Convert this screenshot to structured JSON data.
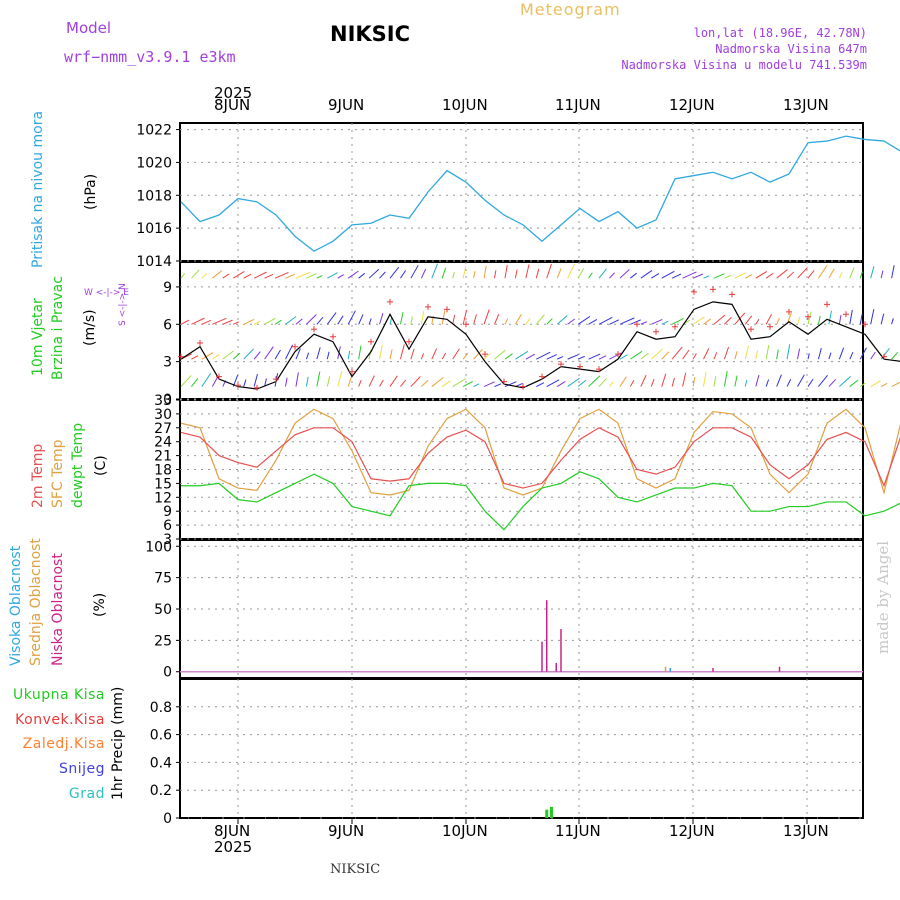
{
  "header": {
    "model_label": "Model",
    "model_name": "wrf−nmm_v3.9.1 e3km",
    "station": "NIKSIC",
    "app_title": "Meteogram",
    "coords": "lon,lat (18.96E, 42.78N)",
    "elevation": "Nadmorska Visina 647m",
    "model_elevation": "Nadmorska Visina u modelu 741.539m"
  },
  "footer": {
    "station": "NIKSIC"
  },
  "watermark": "made by Angel",
  "axis": {
    "year": "2025",
    "days": [
      "8JUN",
      "9JUN",
      "10JUN",
      "11JUN",
      "12JUN",
      "13JUN"
    ]
  },
  "colors": {
    "pressure": "#2fa8e0",
    "wind_speed": "#000000",
    "gust": "#e83a3a",
    "t2m": "#e85050",
    "sfc": "#e0a040",
    "dewpt": "#22cc22",
    "high_cloud": "#2fa8e0",
    "mid_cloud": "#e0a040",
    "low_cloud": "#cc2288",
    "total_precip": "#22cc22",
    "conv_precip": "#e83a3a",
    "frozen_precip": "#ff8030",
    "snow": "#4040e0",
    "graupel": "#30c0c0",
    "header_purple": "#a040e0",
    "header_gold": "#e8c060"
  },
  "chart_data": [
    {
      "type": "line",
      "id": "pressure",
      "title": "Pritisak na nivou mora",
      "ylabel": "(hPa)",
      "ylim": [
        1014,
        1022.4
      ],
      "yticks": [
        "1014",
        "1016",
        "1018",
        "1020",
        "1022"
      ],
      "x": [
        0,
        4,
        8,
        12,
        16,
        20,
        24,
        28,
        32,
        36,
        40,
        44,
        48,
        52,
        56,
        60,
        64,
        68,
        72,
        76,
        80,
        84,
        88,
        92,
        96,
        100,
        104,
        108,
        112,
        116,
        120,
        124,
        128,
        132,
        136,
        140,
        144,
        148,
        152
      ],
      "series": [
        {
          "name": "Pressure",
          "values": [
            1017.6,
            1016.4,
            1016.8,
            1017.8,
            1017.6,
            1016.8,
            1015.5,
            1014.6,
            1015.2,
            1016.2,
            1016.3,
            1016.8,
            1016.6,
            1018.2,
            1019.5,
            1018.8,
            1017.7,
            1016.8,
            1016.2,
            1015.2,
            1016.2,
            1017.2,
            1016.4,
            1017.0,
            1016.0,
            1016.5,
            1019.0,
            1019.2,
            1019.4,
            1019.0,
            1019.4,
            1018.8,
            1019.3,
            1021.2,
            1021.3,
            1021.6,
            1021.4,
            1021.3,
            1020.6
          ]
        }
      ]
    },
    {
      "type": "line",
      "id": "wind",
      "title": "10m Vjetar",
      "subtitle": "Brzina i Pravac",
      "ylabel": "(m/s)",
      "direction_key": "W <-|-> E",
      "direction_key_vertical": "S <-|-> N",
      "ylim": [
        0,
        11
      ],
      "yticks": [
        "0",
        "3",
        "6",
        "9"
      ],
      "x": [
        0,
        4,
        8,
        12,
        16,
        20,
        24,
        28,
        32,
        36,
        40,
        44,
        48,
        52,
        56,
        60,
        64,
        68,
        72,
        76,
        80,
        84,
        88,
        92,
        96,
        100,
        104,
        108,
        112,
        116,
        120,
        124,
        128,
        132,
        136,
        140,
        144,
        148,
        152
      ],
      "series": [
        {
          "name": "Wind speed",
          "values": [
            3.2,
            4.2,
            1.6,
            1.0,
            0.8,
            1.4,
            3.8,
            5.2,
            4.6,
            1.8,
            3.8,
            6.8,
            4.0,
            6.6,
            6.4,
            5.2,
            3.0,
            1.2,
            0.9,
            1.6,
            2.6,
            2.4,
            2.2,
            3.2,
            5.4,
            4.8,
            5.0,
            7.2,
            7.8,
            7.6,
            4.8,
            5.0,
            6.2,
            5.2,
            6.4,
            5.8,
            5.2,
            3.2,
            3.0
          ]
        },
        {
          "name": "Gust",
          "values": [
            3.4,
            4.5,
            1.8,
            1.1,
            0.9,
            1.6,
            4.2,
            5.6,
            5.0,
            2.2,
            4.6,
            7.8,
            4.6,
            7.4,
            7.2,
            6.0,
            3.6,
            1.4,
            1.0,
            1.8,
            2.8,
            2.6,
            2.4,
            3.6,
            6.0,
            5.4,
            5.8,
            8.6,
            8.8,
            8.4,
            5.6,
            5.8,
            7.0,
            6.6,
            7.6,
            6.8,
            6.0,
            3.4,
            3.2
          ]
        }
      ]
    },
    {
      "type": "line",
      "id": "temperature",
      "titles": [
        "2m Temp",
        "SFC Temp",
        "dewpt Temp"
      ],
      "ylabel": "(C)",
      "ylim": [
        3,
        33
      ],
      "yticks": [
        "3",
        "6",
        "9",
        "12",
        "15",
        "18",
        "21",
        "24",
        "27",
        "30",
        "33"
      ],
      "x": [
        0,
        4,
        8,
        12,
        16,
        20,
        24,
        28,
        32,
        36,
        40,
        44,
        48,
        52,
        56,
        60,
        64,
        68,
        72,
        76,
        80,
        84,
        88,
        92,
        96,
        100,
        104,
        108,
        112,
        116,
        120,
        124,
        128,
        132,
        136,
        140,
        144,
        148,
        152
      ],
      "series": [
        {
          "name": "2m Temp",
          "values": [
            26,
            25,
            21,
            19.5,
            18.5,
            22,
            25.5,
            27,
            27,
            24,
            16,
            15.5,
            16,
            21.5,
            25,
            26.5,
            24,
            15,
            14,
            15,
            20,
            24.5,
            27,
            25,
            18,
            17,
            18.5,
            24,
            27,
            27,
            25,
            19,
            16,
            19,
            24.5,
            26,
            24,
            14.5,
            26.5
          ]
        },
        {
          "name": "SFC Temp",
          "values": [
            28,
            27,
            16,
            14,
            13.5,
            20,
            28,
            31,
            29,
            22,
            13,
            12.5,
            13.5,
            23,
            29,
            31,
            27,
            14,
            12.5,
            14,
            22,
            29,
            31,
            28,
            16,
            14,
            16,
            26,
            30.5,
            30,
            27,
            17,
            13,
            17,
            28,
            31,
            27,
            13,
            30
          ]
        },
        {
          "name": "dewpt Temp",
          "values": [
            14.5,
            14.5,
            15,
            11.5,
            11,
            13,
            15,
            17,
            15,
            10,
            9,
            8,
            14.5,
            15,
            15,
            14.5,
            9,
            5,
            10,
            14,
            15,
            17.5,
            16,
            12,
            11,
            12.5,
            14,
            14,
            15,
            14.5,
            9,
            9,
            10,
            10,
            11,
            11,
            8,
            9,
            11
          ]
        }
      ]
    },
    {
      "type": "bar",
      "id": "clouds",
      "titles": [
        "Visoka Oblacnost",
        "Srednja Oblacnost",
        "Niska Oblacnost"
      ],
      "ylabel": "(%)",
      "ylim": [
        -5,
        105
      ],
      "yticks": [
        "0",
        "25",
        "50",
        "75",
        "100"
      ],
      "series": [
        {
          "name": "Niska Oblacnost",
          "x": [
            76,
            77,
            79,
            80,
            112,
            126
          ],
          "values": [
            24,
            57,
            7,
            34,
            3,
            4
          ]
        },
        {
          "name": "Srednja Oblacnost",
          "x": [
            102
          ],
          "values": [
            4
          ]
        },
        {
          "name": "Visoka Oblacnost",
          "x": [
            103
          ],
          "values": [
            3
          ]
        }
      ]
    },
    {
      "type": "bar",
      "id": "precip",
      "ylabel": "1hr Precip (mm)",
      "legend": [
        "Ukupna Kisa",
        "Konvek.Kisa",
        "Zaledj.Kisa",
        "Snijeg",
        "Grad"
      ],
      "ylim": [
        0,
        1.0
      ],
      "yticks": [
        "0",
        "0.2",
        "0.4",
        "0.6",
        "0.8"
      ],
      "series": [
        {
          "name": "Ukupna Kisa",
          "x": [
            77,
            78
          ],
          "values": [
            0.06,
            0.08
          ]
        }
      ]
    }
  ]
}
